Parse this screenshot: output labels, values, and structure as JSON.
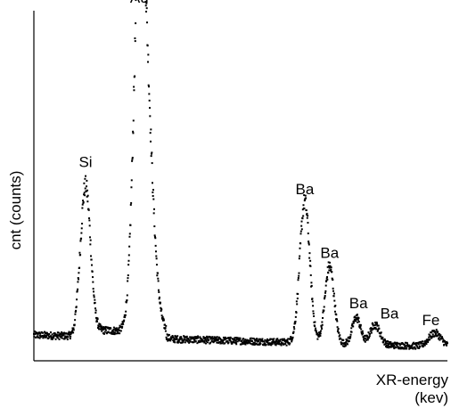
{
  "chart_data": {
    "type": "scatter",
    "title": "",
    "xlabel_line1": "XR-energy",
    "xlabel_line2": "(kev)",
    "ylabel": "cnt (counts)",
    "xlim": [
      0,
      10
    ],
    "ylim": [
      0,
      100
    ],
    "grid": false,
    "x_ticks": "none",
    "y_ticks": "none",
    "series": [
      {
        "style": "dotted",
        "color": "#000000",
        "peaks": [
          {
            "x": 1.25,
            "y": 43,
            "width": 0.12
          },
          {
            "x": 2.55,
            "y": 100,
            "width": 0.14
          },
          {
            "x": 2.75,
            "y": 50,
            "width": 0.16
          },
          {
            "x": 6.55,
            "y": 42,
            "width": 0.12
          },
          {
            "x": 7.15,
            "y": 23,
            "width": 0.11
          },
          {
            "x": 7.8,
            "y": 8,
            "width": 0.1
          },
          {
            "x": 8.25,
            "y": 6,
            "width": 0.12
          },
          {
            "x": 9.7,
            "y": 4,
            "width": 0.15
          }
        ]
      }
    ],
    "annotations": [
      {
        "text": "Au",
        "x": 2.55,
        "y": 104
      },
      {
        "text": "Si",
        "x": 1.25,
        "y": 55
      },
      {
        "text": "Ba",
        "x": 6.55,
        "y": 47
      },
      {
        "text": "Ba",
        "x": 7.15,
        "y": 28
      },
      {
        "text": "Ba",
        "x": 7.85,
        "y": 13
      },
      {
        "text": "Ba",
        "x": 8.6,
        "y": 10
      },
      {
        "text": "Fe",
        "x": 9.6,
        "y": 8
      }
    ]
  }
}
